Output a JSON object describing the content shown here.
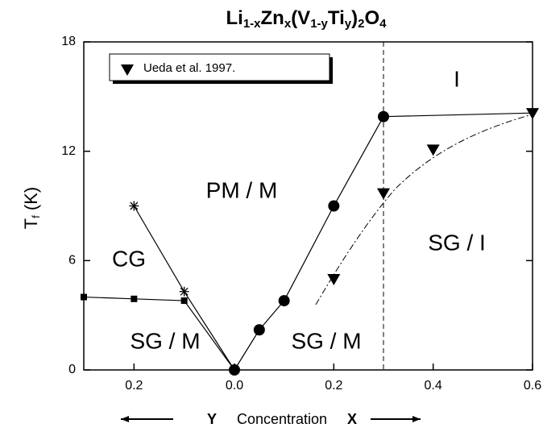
{
  "chart_data": {
    "type": "scatter",
    "title": [
      [
        "Li",
        "1-x"
      ],
      [
        "Zn",
        "x"
      ],
      [
        "(V",
        "1-y"
      ],
      [
        "Ti",
        "y"
      ],
      [
        ")",
        "2"
      ],
      [
        "O",
        "4"
      ]
    ],
    "ylabel": {
      "main": "T",
      "sub": "f",
      "unit": "(K)"
    },
    "xlabel": {
      "left": "Y",
      "middle": "Concentration",
      "right": "X"
    },
    "ylim": [
      0,
      18
    ],
    "yticks": [
      0,
      6,
      12,
      18
    ],
    "color": "#000000",
    "y_side": {
      "xlim": [
        0.3,
        0
      ],
      "xticks": [
        0.2
      ],
      "series": [
        {
          "marker": "square",
          "x": [
            0.3,
            0.2,
            0.1,
            0
          ],
          "values": [
            4.0,
            3.9,
            3.8,
            0
          ]
        },
        {
          "marker": "star",
          "x": [
            0.2,
            0.1,
            0
          ],
          "values": [
            9.0,
            4.3,
            0
          ]
        }
      ]
    },
    "x_side": {
      "xlim": [
        0,
        0.6
      ],
      "xticks": [
        {
          "value": 0,
          "label": "0.0"
        },
        0.2,
        0.4,
        0.6
      ],
      "vline": 0.3,
      "series": [
        {
          "marker": "circle",
          "x": [
            0,
            0.05,
            0.1,
            0.2,
            0.3
          ],
          "values": [
            0,
            2.2,
            3.8,
            9.0,
            13.9
          ]
        },
        {
          "marker": "none",
          "x": [
            0.3,
            0.6
          ],
          "values": [
            13.9,
            14.1
          ]
        },
        {
          "name": "Ueda et al. 1997.",
          "marker": "triangle",
          "x": [
            0.2,
            0.3,
            0.4,
            0.6
          ],
          "values": [
            5.0,
            9.7,
            12.1,
            14.1
          ]
        }
      ]
    },
    "annotations": [
      "I",
      "PM / M",
      "CG",
      "SG / M",
      "SG / M",
      "SG / I"
    ]
  }
}
